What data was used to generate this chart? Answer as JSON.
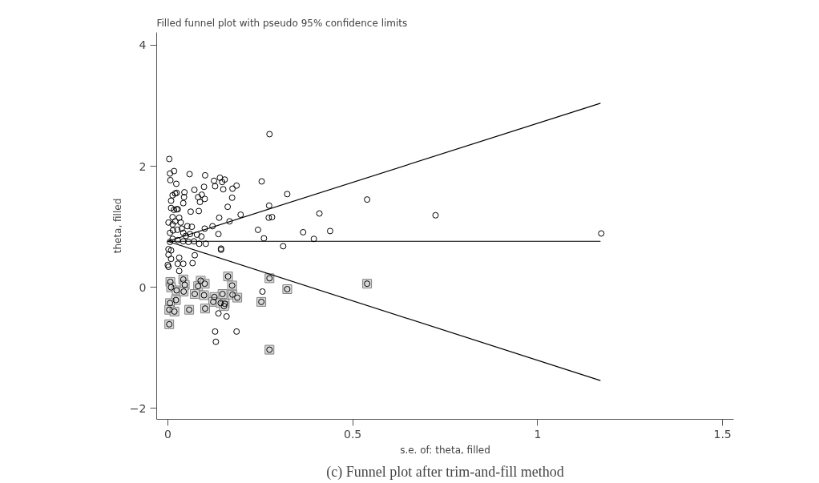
{
  "chart_data": {
    "type": "scatter",
    "title": "Filled funnel plot with pseudo 95% confidence limits",
    "xlabel": "s.e. of: theta, filled",
    "ylabel": "theta, filled",
    "annotations": [
      "(c) Funnel plot after trim-and-fill method"
    ],
    "xlim": [
      -0.03,
      1.53
    ],
    "ylim": [
      -2.18,
      4.21
    ],
    "xticks": [
      0,
      0.5,
      1,
      1.5
    ],
    "yticks": [
      {
        "value": -2,
        "label": "−2"
      },
      0,
      2,
      4
    ],
    "grid": false,
    "series": [
      {
        "marker": "circle",
        "color": "#000000",
        "x": [
          0.004,
          0.006,
          0.017,
          0.007,
          0.023,
          0.059,
          0.101,
          0.125,
          0.141,
          0.154,
          0.147,
          0.128,
          0.15,
          0.175,
          0.186,
          0.098,
          0.254,
          0.072,
          0.045,
          0.024,
          0.02,
          0.013,
          0.009,
          0.044,
          0.042,
          0.082,
          0.092,
          0.087,
          0.1,
          0.174,
          0.162,
          0.009,
          0.017,
          0.024,
          0.027,
          0.062,
          0.084,
          0.013,
          0.031,
          0.139,
          0.197,
          0.274,
          0.273,
          0.282,
          0.167,
          0.121,
          0.1,
          0.002,
          0.013,
          0.02,
          0.035,
          0.053,
          0.065,
          0.006,
          0.014,
          0.026,
          0.038,
          0.042,
          0.049,
          0.06,
          0.079,
          0.137,
          0.244,
          0.26,
          0.091,
          0.013,
          0.027,
          0.042,
          0.056,
          0.071,
          0.085,
          0.103,
          0.006,
          0.144,
          0.002,
          0.009,
          0.275,
          0.323,
          0.41,
          0.539,
          0.366,
          0.395,
          0.439,
          0.312,
          0.724,
          1.172,
          0.002,
          0.009,
          0.0,
          0.002,
          0.031,
          0.027,
          0.042,
          0.067,
          0.031,
          0.073,
          0.144,
          0.256,
          0.137,
          0.159,
          0.128,
          0.186,
          0.13
        ],
        "values": [
          2.12,
          1.88,
          1.92,
          1.77,
          1.71,
          1.87,
          1.85,
          1.76,
          1.81,
          1.78,
          1.74,
          1.67,
          1.62,
          1.63,
          1.68,
          1.66,
          1.75,
          1.61,
          1.57,
          1.56,
          1.55,
          1.52,
          1.43,
          1.49,
          1.39,
          1.49,
          1.53,
          1.41,
          1.46,
          1.48,
          1.33,
          1.31,
          1.28,
          1.29,
          1.29,
          1.25,
          1.26,
          1.16,
          1.15,
          1.15,
          1.2,
          1.35,
          1.15,
          1.16,
          1.09,
          1.01,
          0.97,
          1.07,
          1.04,
          1.09,
          1.07,
          1.01,
          1.0,
          0.9,
          0.94,
          0.95,
          0.97,
          0.9,
          0.85,
          0.88,
          0.87,
          0.88,
          0.95,
          0.81,
          0.84,
          0.8,
          0.78,
          0.76,
          0.75,
          0.76,
          0.72,
          0.72,
          0.75,
          0.64,
          0.63,
          0.61,
          2.53,
          1.54,
          1.22,
          1.45,
          0.91,
          0.8,
          0.93,
          0.68,
          1.19,
          0.89,
          0.54,
          0.47,
          0.37,
          0.34,
          0.49,
          0.39,
          0.39,
          0.4,
          0.27,
          0.53,
          0.62,
          -0.07,
          -0.43,
          -0.48,
          -0.73,
          -0.73,
          -0.9
        ]
      },
      {
        "marker": "square",
        "color": "#808080",
        "x": [
          0.007,
          0.042,
          0.009,
          0.024,
          0.046,
          0.043,
          0.089,
          0.082,
          0.1,
          0.098,
          0.073,
          0.163,
          0.174,
          0.175,
          0.188,
          0.148,
          0.126,
          0.123,
          0.143,
          0.154,
          0.152,
          0.022,
          0.006,
          0.004,
          0.018,
          0.058,
          0.101,
          0.253,
          0.004,
          0.275,
          0.323,
          0.539,
          0.275
        ],
        "values": [
          0.09,
          0.13,
          0.0,
          -0.05,
          0.04,
          -0.07,
          0.11,
          0.02,
          0.06,
          -0.13,
          -0.11,
          0.18,
          0.03,
          -0.12,
          -0.17,
          -0.11,
          -0.16,
          -0.24,
          -0.26,
          -0.27,
          -0.31,
          -0.21,
          -0.26,
          -0.37,
          -0.4,
          -0.37,
          -0.35,
          -0.24,
          -0.61,
          0.15,
          -0.03,
          0.06,
          -1.03
        ]
      },
      {
        "type": "line",
        "color": "#000000",
        "x": [
          0,
          1.17
        ],
        "values": [
          0.76,
          3.04
        ]
      },
      {
        "type": "line",
        "color": "#000000",
        "x": [
          0,
          1.17
        ],
        "values": [
          0.76,
          0.76
        ]
      },
      {
        "type": "line",
        "color": "#000000",
        "x": [
          0,
          1.17
        ],
        "values": [
          0.76,
          -1.54
        ]
      }
    ]
  }
}
